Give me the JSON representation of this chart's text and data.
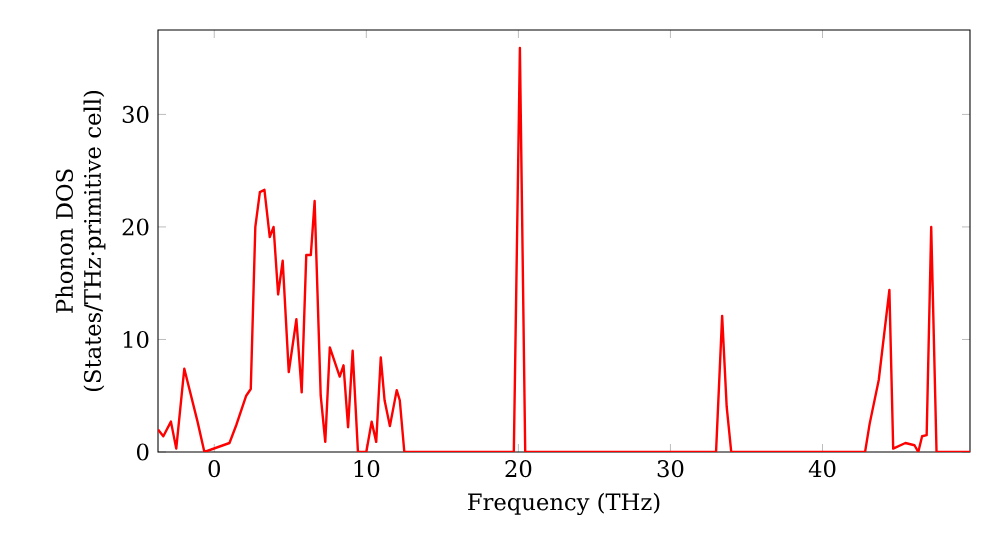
{
  "chart_data": {
    "type": "line",
    "xlabel": "Frequency (THz)",
    "ylabel": "Phonon DOS (States/THz·primitive cell)",
    "color": "#ff0000",
    "xlim": [
      -3.7,
      49.7
    ],
    "ylim": [
      0,
      37.5
    ],
    "xticks": [
      0,
      10,
      20,
      30,
      40
    ],
    "yticks": [
      0,
      10,
      20,
      30
    ],
    "grid": false,
    "x": [
      -3.7,
      -3.35,
      -2.85,
      -2.5,
      -1.97,
      -1.1,
      -0.65,
      1.0,
      1.45,
      2.1,
      2.4,
      2.7,
      3.0,
      3.3,
      3.65,
      3.9,
      4.2,
      4.5,
      4.9,
      5.4,
      5.75,
      6.05,
      6.35,
      6.6,
      7.0,
      7.3,
      7.6,
      8.25,
      8.5,
      8.8,
      9.1,
      9.45,
      10.0,
      10.35,
      10.65,
      10.95,
      11.2,
      11.55,
      12.0,
      12.2,
      12.5,
      19.7,
      20.1,
      20.45,
      33.0,
      33.4,
      33.7,
      34.0,
      42.8,
      43.1,
      43.7,
      44.4,
      44.65,
      45.45,
      46.05,
      46.3,
      46.55,
      46.85,
      47.15,
      47.5,
      49.7
    ],
    "values": [
      2.0,
      1.4,
      2.7,
      0.3,
      7.4,
      2.7,
      0,
      0.8,
      2.4,
      5.0,
      5.6,
      20.0,
      23.1,
      23.3,
      19.1,
      20.0,
      14.0,
      17.0,
      7.1,
      11.8,
      5.3,
      17.5,
      17.5,
      22.3,
      5.0,
      0.9,
      9.3,
      6.7,
      7.7,
      2.2,
      9.0,
      0,
      0,
      2.7,
      0.9,
      8.4,
      4.6,
      2.3,
      5.5,
      4.6,
      0,
      0,
      35.9,
      0,
      0,
      12.1,
      4.0,
      0,
      0,
      2.5,
      6.4,
      14.4,
      0.3,
      0.8,
      0.6,
      0,
      1.4,
      1.5,
      20.0,
      0,
      0
    ]
  }
}
